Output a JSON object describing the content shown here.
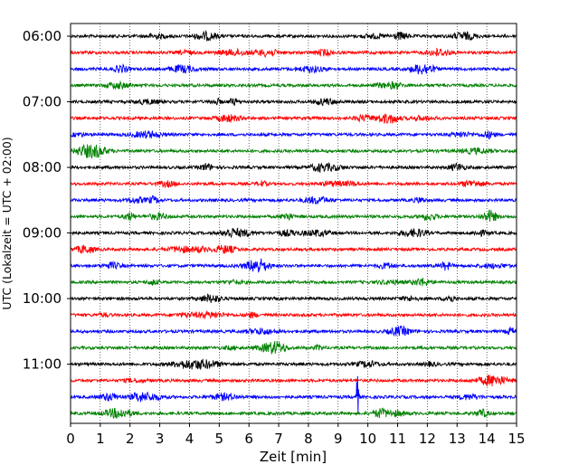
{
  "chart_data": {
    "type": "line",
    "title": "",
    "xlabel": "Zeit  [min]",
    "ylabel": "UTC (Lokalzeit = UTC + 02:00)",
    "xlim": [
      0,
      15
    ],
    "x_ticks": [
      "0",
      "1",
      "2",
      "3",
      "4",
      "5",
      "6",
      "7",
      "8",
      "9",
      "10",
      "11",
      "12",
      "13",
      "14",
      "15"
    ],
    "y_ticks": [
      {
        "label": "06:00",
        "row": 0
      },
      {
        "label": "07:00",
        "row": 4
      },
      {
        "label": "08:00",
        "row": 8
      },
      {
        "label": "09:00",
        "row": 12
      },
      {
        "label": "10:00",
        "row": 16
      },
      {
        "label": "11:00",
        "row": 20
      }
    ],
    "grid": "vertical-dotted",
    "row_colors": [
      "#000000",
      "#ff0000",
      "#0000ff",
      "#008000"
    ],
    "row_count": 24,
    "minutes_per_row": 15,
    "start_time": "06:00",
    "notable_events": [
      {
        "row": 22,
        "minute": 9.65,
        "amplitude": "large"
      },
      {
        "row": 12,
        "minute": 5.4,
        "amplitude": "medium"
      },
      {
        "row": 2,
        "minute": 12.0,
        "amplitude": "small"
      }
    ]
  }
}
